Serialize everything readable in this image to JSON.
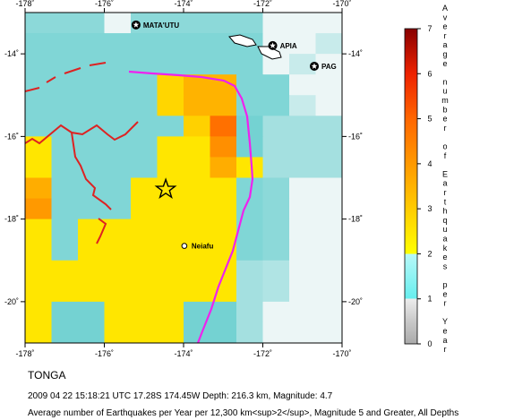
{
  "map": {
    "lon_ticks": [
      "-178˚",
      "-176˚",
      "-174˚",
      "-172˚",
      "-170˚"
    ],
    "lat_ticks": [
      "-14˚",
      "-16˚",
      "-18˚",
      "-20˚"
    ],
    "places": [
      {
        "name": "MATA'UTU",
        "lon": -175.2,
        "lat": -13.3,
        "marker": "star-circle"
      },
      {
        "name": "APIA",
        "lon": -171.75,
        "lat": -13.8,
        "marker": "star-circle"
      },
      {
        "name": "PAG",
        "lon": -170.7,
        "lat": -14.3,
        "marker": "star-circle"
      },
      {
        "name": "Neiafu",
        "lon": -173.98,
        "lat": -18.65,
        "marker": "dot"
      }
    ],
    "epicenter": {
      "lon": -174.45,
      "lat": -17.28
    },
    "grid": {
      "lon_start": -178,
      "lat_top": -13,
      "cell": 1,
      "rows": [
        [
          0.8,
          0.8,
          0.8,
          0.0,
          0.8,
          0.8,
          0.8,
          0.8,
          0.8,
          0.0,
          0.0,
          0.0
        ],
        [
          0.9,
          0.9,
          0.9,
          0.9,
          0.9,
          0.9,
          0.9,
          0.9,
          0.9,
          0.0,
          0.0,
          0.3
        ],
        [
          0.9,
          0.9,
          0.9,
          0.9,
          0.9,
          0.9,
          0.9,
          0.9,
          0.9,
          0.0,
          0.3,
          0.0
        ],
        [
          0.9,
          0.9,
          0.9,
          0.9,
          0.9,
          1.8,
          2.5,
          2.5,
          0.9,
          0.9,
          0.0,
          0.0
        ],
        [
          0.9,
          0.9,
          0.9,
          0.9,
          0.9,
          1.8,
          2.5,
          2.5,
          0.9,
          0.9,
          0.3,
          0.0
        ],
        [
          0.9,
          0.9,
          0.9,
          0.9,
          0.9,
          0.9,
          1.9,
          3.8,
          1.0,
          0.6,
          0.6,
          0.6
        ],
        [
          1.5,
          0.9,
          0.9,
          0.9,
          0.9,
          1.5,
          1.5,
          3.2,
          1.0,
          0.6,
          0.6,
          0.6
        ],
        [
          1.5,
          0.9,
          0.9,
          0.9,
          0.9,
          1.5,
          1.5,
          2.6,
          1.5,
          0.6,
          0.6,
          0.6
        ],
        [
          2.6,
          0.9,
          0.9,
          0.9,
          1.5,
          1.5,
          1.5,
          1.5,
          0.9,
          0.8,
          0.0,
          0.0
        ],
        [
          3.0,
          0.9,
          0.9,
          0.9,
          1.5,
          1.5,
          1.5,
          1.5,
          0.9,
          0.8,
          0.0,
          0.0
        ],
        [
          1.5,
          0.9,
          1.5,
          1.5,
          1.5,
          1.5,
          1.5,
          1.5,
          0.9,
          0.8,
          0.0,
          0.0
        ],
        [
          1.5,
          0.9,
          1.5,
          1.5,
          1.5,
          1.5,
          1.5,
          1.5,
          0.9,
          0.8,
          0.0,
          0.0
        ],
        [
          1.5,
          1.5,
          1.5,
          1.5,
          1.5,
          1.5,
          1.5,
          1.5,
          0.6,
          0.5,
          0.0,
          0.0
        ],
        [
          1.5,
          1.5,
          1.5,
          1.5,
          1.5,
          1.5,
          1.5,
          1.5,
          0.6,
          0.5,
          0.0,
          0.0
        ],
        [
          1.5,
          1.0,
          1.0,
          1.5,
          1.5,
          1.5,
          1.0,
          1.0,
          0.6,
          0.0,
          0.0,
          0.0
        ],
        [
          1.5,
          1.0,
          1.0,
          1.5,
          1.5,
          1.5,
          1.0,
          1.0,
          0.6,
          0.0,
          0.0,
          0.0
        ]
      ]
    },
    "colors": {
      "trench": "#ee22ee",
      "fault": "#dd2222",
      "land_fill": "#ffffff"
    }
  },
  "colorbar": {
    "ticks": [
      "0",
      "1",
      "2",
      "3",
      "4",
      "5",
      "6",
      "7"
    ],
    "title_letters": [
      "A",
      "v",
      "e",
      "r",
      "a",
      "g",
      "e",
      "",
      "n",
      "u",
      "m",
      "b",
      "e",
      "r",
      "",
      "o",
      "f",
      "",
      "E",
      "a",
      "r",
      "t",
      "h",
      "q",
      "u",
      "a",
      "k",
      "e",
      "s",
      "",
      "p",
      "e",
      "r",
      "",
      "Y",
      "e",
      "a",
      "r"
    ]
  },
  "caption": {
    "region": "TONGA",
    "event": "2009 04 22 15:18:21 UTC 17.28S 174.45W Depth: 216.3 km, Magnitude: 4.7",
    "legend": "Average number of Earthquakes per Year per 12,300 km<sup>2</sup>, Magnitude 5 and Greater, All Depths"
  }
}
